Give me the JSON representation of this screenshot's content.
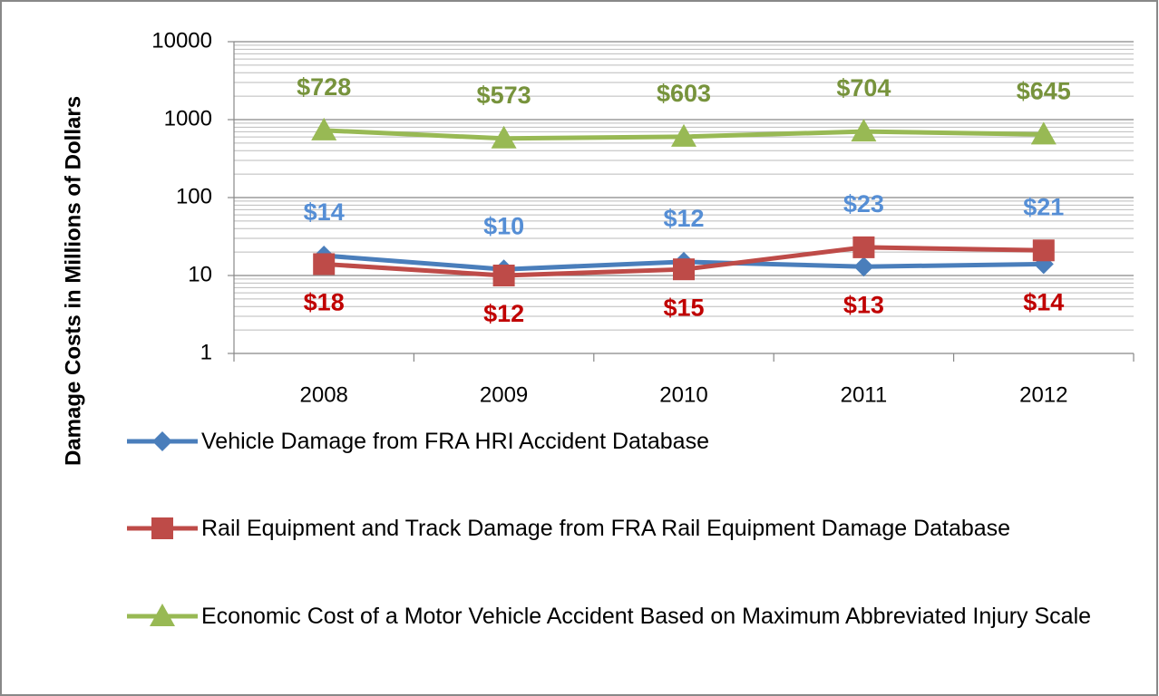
{
  "chart_data": {
    "type": "line",
    "y_label": "Damage Costs in Millions of Dollars",
    "categories": [
      "2008",
      "2009",
      "2010",
      "2011",
      "2012"
    ],
    "log_scale": true,
    "grid": true,
    "minor_grid": true,
    "legend": "bottom",
    "ylim": [
      1,
      10000
    ],
    "yticks": [
      1,
      10,
      100,
      1000,
      10000
    ],
    "series": [
      {
        "name": "Vehicle Damage from FRA HRI Accident Database",
        "color": "#4a7ebb",
        "marker": "diamond",
        "label_color": "#c00000",
        "label_position": "below",
        "values": [
          18,
          12,
          15,
          13,
          14
        ],
        "value_labels": [
          "$18",
          "$12",
          "$15",
          "$13",
          "$14"
        ]
      },
      {
        "name": "Rail Equipment and Track Damage from FRA Rail Equipment Damage Database",
        "color": "#be4b48",
        "marker": "square",
        "label_color": "#558ed5",
        "label_position": "above",
        "values": [
          14,
          10,
          12,
          23,
          21
        ],
        "value_labels": [
          "$14",
          "$10",
          "$12",
          "$23",
          "$21"
        ]
      },
      {
        "name": "Economic Cost of a Motor Vehicle Accident Based on Maximum Abbreviated Injury Scale",
        "color": "#98b954",
        "marker": "triangle",
        "label_color": "#77933c",
        "label_position": "above",
        "values": [
          728,
          573,
          603,
          704,
          645
        ],
        "value_labels": [
          "$728",
          "$573",
          "$603",
          "$704",
          "$645"
        ]
      }
    ]
  }
}
